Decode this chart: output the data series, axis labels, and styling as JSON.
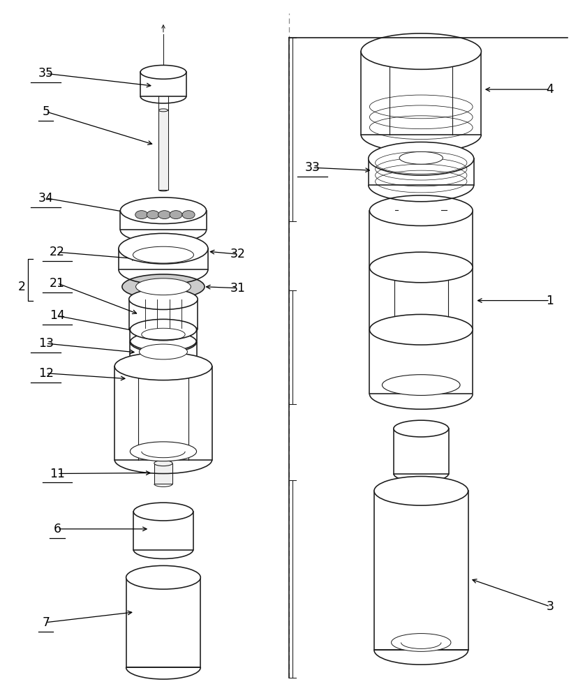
{
  "bg_color": "#ffffff",
  "lc": "#1a1a1a",
  "figsize": [
    8.29,
    10.0
  ],
  "dpi": 100,
  "lcx": 0.28,
  "rcx": 0.73,
  "fontsize": 12.5
}
